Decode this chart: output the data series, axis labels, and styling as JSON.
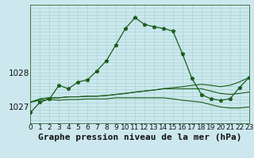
{
  "title": "Graphe pression niveau de la mer (hPa)",
  "background_color": "#cce8ee",
  "line_color": "#1a5c1a",
  "grid_color_v": "#aad4d4",
  "grid_color_h": "#aad4d4",
  "x_ticks": [
    0,
    1,
    2,
    3,
    4,
    5,
    6,
    7,
    8,
    9,
    10,
    11,
    12,
    13,
    14,
    15,
    16,
    17,
    18,
    19,
    20,
    21,
    22,
    23
  ],
  "y_ticks": [
    1027,
    1028
  ],
  "ylim": [
    1026.5,
    1030.0
  ],
  "xlim": [
    0,
    23
  ],
  "main_line": [
    1026.82,
    1027.12,
    1027.22,
    1027.62,
    1027.52,
    1027.72,
    1027.78,
    1028.05,
    1028.35,
    1028.82,
    1029.3,
    1029.62,
    1029.42,
    1029.35,
    1029.3,
    1029.22,
    1028.55,
    1027.82,
    1027.35,
    1027.22,
    1027.18,
    1027.22,
    1027.55,
    1027.85
  ],
  "flat_line1": [
    1027.12,
    1027.22,
    1027.25,
    1027.25,
    1027.28,
    1027.28,
    1027.3,
    1027.3,
    1027.32,
    1027.35,
    1027.38,
    1027.42,
    1027.45,
    1027.48,
    1027.52,
    1027.55,
    1027.58,
    1027.62,
    1027.65,
    1027.62,
    1027.58,
    1027.62,
    1027.72,
    1027.85
  ],
  "flat_line2": [
    1027.12,
    1027.22,
    1027.25,
    1027.25,
    1027.28,
    1027.28,
    1027.3,
    1027.3,
    1027.32,
    1027.35,
    1027.38,
    1027.42,
    1027.45,
    1027.48,
    1027.52,
    1027.52,
    1027.52,
    1027.52,
    1027.52,
    1027.45,
    1027.38,
    1027.35,
    1027.38,
    1027.42
  ],
  "flat_line3": [
    1027.12,
    1027.18,
    1027.2,
    1027.18,
    1027.2,
    1027.2,
    1027.22,
    1027.22,
    1027.22,
    1027.25,
    1027.25,
    1027.25,
    1027.25,
    1027.25,
    1027.25,
    1027.22,
    1027.18,
    1027.15,
    1027.12,
    1027.05,
    1026.98,
    1026.95,
    1026.95,
    1026.98
  ],
  "title_fontsize": 8,
  "tick_fontsize": 6.5
}
